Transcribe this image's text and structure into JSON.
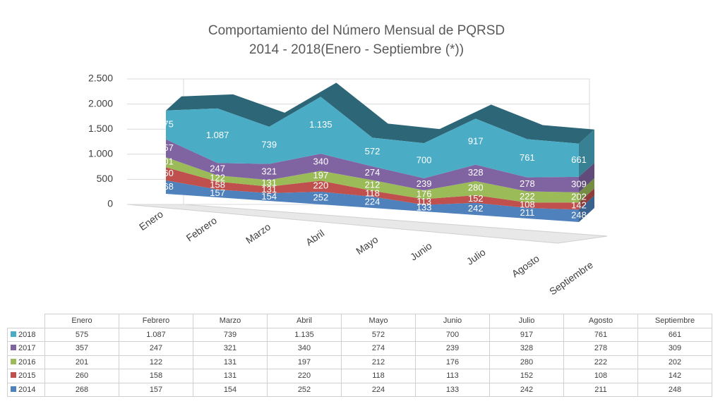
{
  "chart_data": {
    "type": "area",
    "title": "Comportamiento del Número Mensual de PQRSD",
    "subtitle": "2014 - 2018(Enero - Septiembre (*))",
    "stacked": true,
    "categories": [
      "Enero",
      "Febrero",
      "Marzo",
      "Abril",
      "Mayo",
      "Junio",
      "Julio",
      "Agosto",
      "Septiembre"
    ],
    "series": [
      {
        "name": "2014",
        "color": "#4f81bd",
        "values": [
          268,
          157,
          154,
          252,
          224,
          133,
          242,
          211,
          248
        ]
      },
      {
        "name": "2015",
        "color": "#c0504d",
        "values": [
          260,
          158,
          131,
          220,
          118,
          113,
          152,
          108,
          142
        ]
      },
      {
        "name": "2016",
        "color": "#9bbb59",
        "values": [
          201,
          122,
          131,
          197,
          212,
          176,
          280,
          222,
          202
        ]
      },
      {
        "name": "2017",
        "color": "#8064a2",
        "values": [
          357,
          247,
          321,
          340,
          274,
          239,
          328,
          278,
          309
        ]
      },
      {
        "name": "2018",
        "color": "#4bacc6",
        "values": [
          575,
          1087,
          739,
          1135,
          572,
          700,
          917,
          761,
          661
        ],
        "value_labels": [
          "575",
          "1.087",
          "739",
          "1.135",
          "572",
          "700",
          "917",
          "761",
          "661"
        ]
      }
    ],
    "ylim": [
      0,
      2500
    ],
    "yticks": [
      0,
      500,
      {
        "value": 1000,
        "label": "1.000"
      },
      {
        "value": 1500,
        "label": "1.500"
      },
      {
        "value": 2000,
        "label": "2.000"
      },
      {
        "value": 2500,
        "label": "2.500"
      }
    ],
    "grid": true,
    "data_table": true
  }
}
